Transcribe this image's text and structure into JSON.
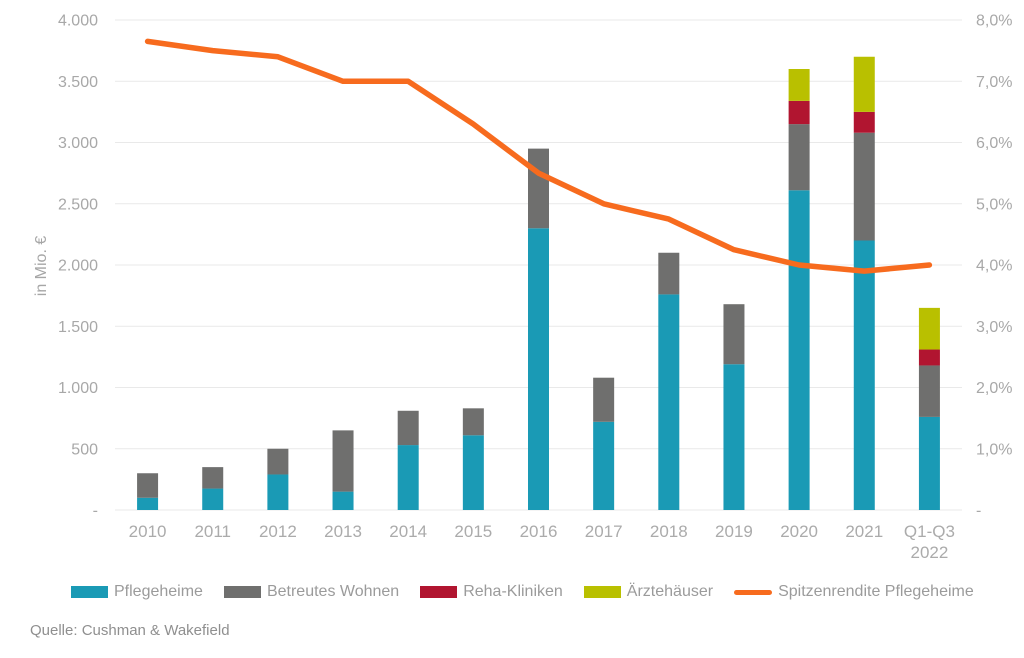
{
  "chart_data": {
    "type": "bar",
    "stacked": true,
    "grid": true,
    "legend_position": "bottom",
    "categories": [
      [
        "2010"
      ],
      [
        "2011"
      ],
      [
        "2012"
      ],
      [
        "2013"
      ],
      [
        "2014"
      ],
      [
        "2015"
      ],
      [
        "2016"
      ],
      [
        "2017"
      ],
      [
        "2018"
      ],
      [
        "2019"
      ],
      [
        "2020"
      ],
      [
        "2021"
      ],
      [
        "Q1-Q3",
        "2022"
      ]
    ],
    "series": [
      {
        "name": "Pflegeheime",
        "color": "#1a9ab5",
        "values": [
          100,
          175,
          290,
          150,
          530,
          610,
          2300,
          720,
          1760,
          1190,
          2610,
          2200,
          760
        ]
      },
      {
        "name": "Betreutes Wohnen",
        "color": "#6f6f6e",
        "values": [
          200,
          175,
          210,
          500,
          280,
          220,
          650,
          360,
          340,
          490,
          540,
          880,
          420
        ]
      },
      {
        "name": "Reha-Kliniken",
        "color": "#b11530",
        "values": [
          0,
          0,
          0,
          0,
          0,
          0,
          0,
          0,
          0,
          0,
          190,
          170,
          130
        ]
      },
      {
        "name": "Ärztehäuser",
        "color": "#b9c000",
        "values": [
          0,
          0,
          0,
          0,
          0,
          0,
          0,
          0,
          0,
          0,
          260,
          450,
          340
        ]
      }
    ],
    "line": {
      "name": "Spitzenrendite Pflegeheime",
      "color": "#f76b1e",
      "axis": "right",
      "values": [
        7.65,
        7.5,
        7.4,
        7.0,
        7.0,
        6.3,
        5.5,
        5.0,
        4.75,
        4.25,
        4.0,
        3.9,
        4.0
      ]
    },
    "left_axis": {
      "title": "in Mio. €",
      "max": 4000,
      "min": 0,
      "step": 500,
      "ticks": [
        "4.000",
        "3.500",
        "3.000",
        "2.500",
        "2.000",
        "1.500",
        "1.000",
        "500",
        "-"
      ]
    },
    "right_axis": {
      "max": 8,
      "min": 0,
      "step": 1,
      "ticks": [
        "8,0%",
        "7,0%",
        "6,0%",
        "5,0%",
        "4,0%",
        "3,0%",
        "2,0%",
        "1,0%",
        "-"
      ]
    },
    "colors": {
      "gridline": "#e9e9e9",
      "axis_text": "#a8a8a8",
      "category_text": "#ababab"
    }
  },
  "source": {
    "text": "Quelle: Cushman & Wakefield"
  }
}
